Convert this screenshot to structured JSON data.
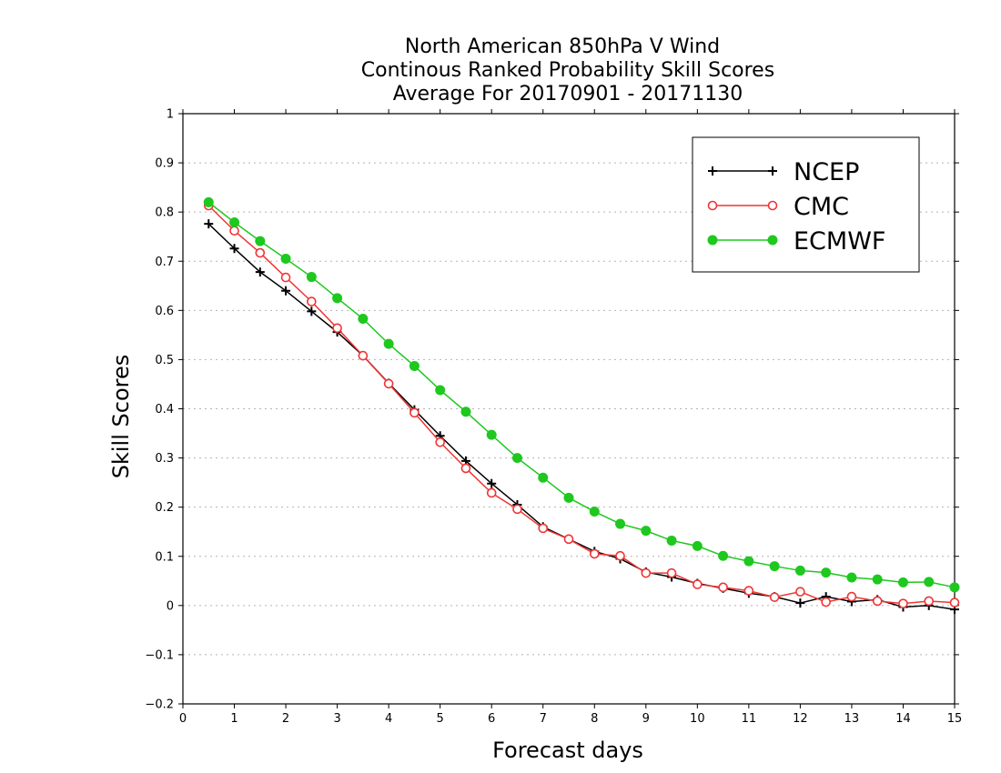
{
  "chart_data": {
    "type": "line",
    "title": [
      "North American 850hPa V Wind",
      "Continous Ranked Probability Skill Scores",
      "Average For 20170901 - 20171130"
    ],
    "xlabel": "Forecast days",
    "ylabel": "Skill Scores",
    "xlim": [
      0,
      15
    ],
    "ylim": [
      -0.2,
      1
    ],
    "xticks": [
      0,
      1,
      2,
      3,
      4,
      5,
      6,
      7,
      8,
      9,
      10,
      11,
      12,
      13,
      14,
      15
    ],
    "yticks": [
      -0.2,
      -0.1,
      0,
      0.1,
      0.2,
      0.3,
      0.4,
      0.5,
      0.6,
      0.7,
      0.8,
      0.9,
      1
    ],
    "grid": "horizontal dotted",
    "legend_position": "top-right",
    "x": [
      0.5,
      1.0,
      1.5,
      2.0,
      2.5,
      3.0,
      3.5,
      4.0,
      4.5,
      5.0,
      5.5,
      6.0,
      6.5,
      7.0,
      7.5,
      8.0,
      8.5,
      9.0,
      9.5,
      10.0,
      10.5,
      11.0,
      11.5,
      12.0,
      12.5,
      13.0,
      13.5,
      14.0,
      14.5,
      15.0
    ],
    "series": [
      {
        "name": "NCEP",
        "color": "#000000",
        "marker": "plus",
        "values": [
          0.776,
          0.726,
          0.678,
          0.64,
          0.598,
          0.556,
          0.508,
          0.452,
          0.398,
          0.345,
          0.294,
          0.248,
          0.205,
          0.16,
          0.135,
          0.11,
          0.095,
          0.068,
          0.058,
          0.045,
          0.035,
          0.025,
          0.018,
          0.005,
          0.018,
          0.008,
          0.012,
          -0.003,
          0.0,
          -0.008
        ]
      },
      {
        "name": "CMC",
        "color": "#ef3535",
        "marker": "open-circle",
        "values": [
          0.813,
          0.762,
          0.717,
          0.667,
          0.618,
          0.564,
          0.508,
          0.451,
          0.392,
          0.332,
          0.279,
          0.229,
          0.196,
          0.157,
          0.135,
          0.105,
          0.101,
          0.066,
          0.066,
          0.043,
          0.037,
          0.03,
          0.017,
          0.028,
          0.007,
          0.018,
          0.009,
          0.004,
          0.009,
          0.006
        ]
      },
      {
        "name": "ECMWF",
        "color": "#1ec81e",
        "marker": "filled-circle",
        "values": [
          0.82,
          0.779,
          0.741,
          0.705,
          0.668,
          0.625,
          0.583,
          0.532,
          0.487,
          0.438,
          0.394,
          0.347,
          0.3,
          0.26,
          0.219,
          0.191,
          0.166,
          0.152,
          0.132,
          0.121,
          0.101,
          0.09,
          0.08,
          0.071,
          0.067,
          0.057,
          0.053,
          0.047,
          0.048,
          0.037
        ]
      }
    ]
  }
}
